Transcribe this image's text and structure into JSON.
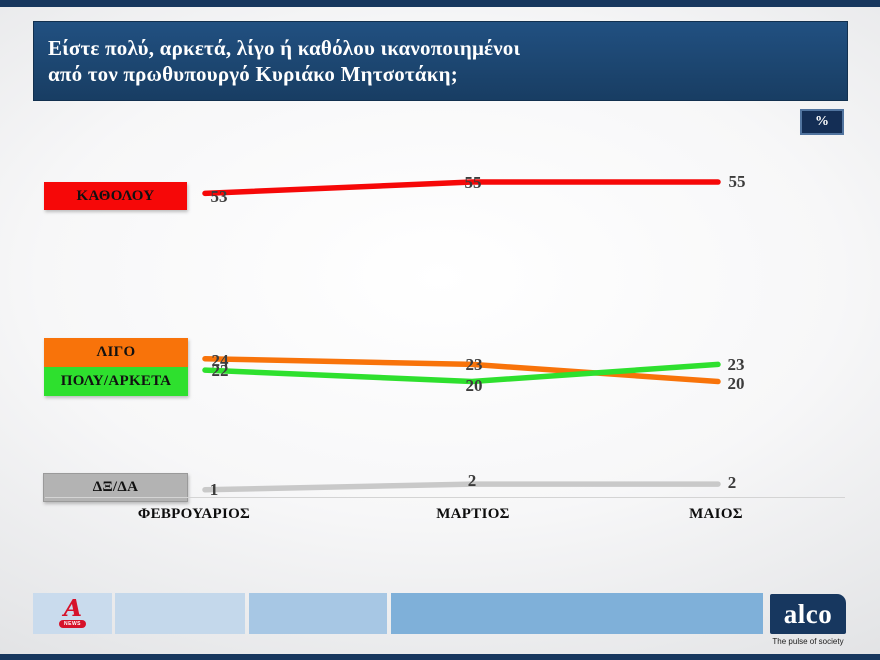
{
  "title": {
    "line1": "Είστε πολύ, αρκετά, λίγο ή καθόλου ικανοποιημένοι",
    "line2": "από τον πρωθυπουργό Κυριάκο Μητσοτάκη;"
  },
  "unit_badge": "%",
  "chart_data": {
    "type": "line",
    "categories": [
      "ΦΕΒΡΟΥΑΡΙΟΣ",
      "ΜΑΡΤΙΟΣ",
      "ΜΑΙΟΣ"
    ],
    "series": [
      {
        "name": "ΚΑΘΟΛΟΥ",
        "values": [
          53,
          55,
          55
        ],
        "color": "#f60808",
        "label_bg": "#f60808"
      },
      {
        "name": "ΛΙΓΟ",
        "values": [
          24,
          23,
          20
        ],
        "color": "#f8730a",
        "label_bg": "#f8730a"
      },
      {
        "name": "ΠΟΛΥ/ΑΡΚΕΤΑ",
        "values": [
          22,
          20,
          23
        ],
        "color": "#2ee02e",
        "label_bg": "#2ee02e"
      },
      {
        "name": "ΔΞ/ΔΑ",
        "values": [
          1,
          2,
          2
        ],
        "color": "#c9c9c9",
        "label_bg": "#b3b3b3"
      }
    ],
    "ylim": [
      0,
      60
    ],
    "grid": false,
    "legend_position": "left",
    "value_label_color": "#3c3c3c"
  },
  "footer": {
    "alpha_logo": {
      "letter": "A",
      "news": "NEWS"
    },
    "alco_logo": "alco",
    "alco_tagline": "The pulse of society"
  }
}
